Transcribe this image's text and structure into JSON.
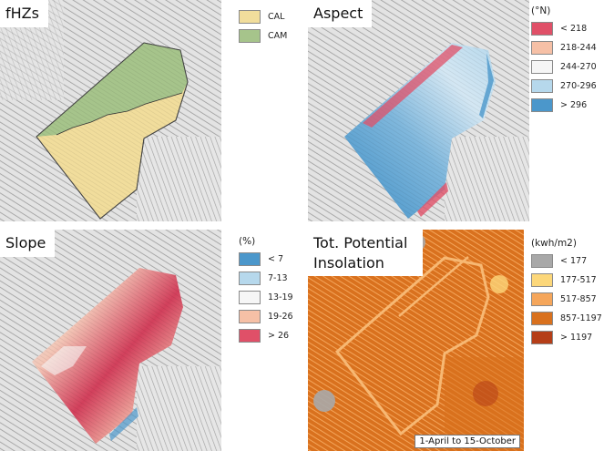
{
  "panels": {
    "fhzs": {
      "title": "fHZs",
      "legend": [
        {
          "label": "CAL",
          "color": "#f1dd9c"
        },
        {
          "label": "CAM",
          "color": "#a6c48b"
        }
      ]
    },
    "aspect": {
      "title": "Aspect",
      "unit": "(°N)",
      "legend": [
        {
          "label": "< 218",
          "color": "#e05068"
        },
        {
          "label": "218-244",
          "color": "#f6c0a6"
        },
        {
          "label": "244-270",
          "color": "#f6f6f6"
        },
        {
          "label": "270-296",
          "color": "#b6d8ec"
        },
        {
          "label": "> 296",
          "color": "#4b97cb"
        }
      ]
    },
    "slope": {
      "title": "Slope",
      "unit": "(%)",
      "legend": [
        {
          "label": "< 7",
          "color": "#4b97cb"
        },
        {
          "label": "7-13",
          "color": "#b6d8ec"
        },
        {
          "label": "13-19",
          "color": "#f6f6f6"
        },
        {
          "label": "19-26",
          "color": "#f6c0a6"
        },
        {
          "label": "> 26",
          "color": "#e05068"
        }
      ]
    },
    "insolation": {
      "title": "Tot. Potential Insolation",
      "unit": "(kwh/m2)",
      "caption": "1-April to 15-October",
      "legend": [
        {
          "label": "< 177",
          "color": "#a8a8a8"
        },
        {
          "label": "177-517",
          "color": "#fcd77a"
        },
        {
          "label": "517-857",
          "color": "#f5a65b"
        },
        {
          "label": "857-1197",
          "color": "#d9711e"
        },
        {
          "label": "> 1197",
          "color": "#b53e18"
        }
      ]
    }
  }
}
